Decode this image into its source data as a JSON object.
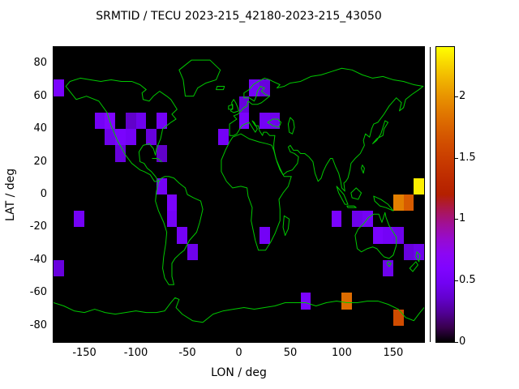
{
  "title": "SRMTID / TECU 2023-215_42180-2023-215_43050",
  "axes": {
    "x_label": "LON / deg",
    "y_label": "LAT / deg",
    "x_ticks": [
      -150,
      -100,
      -50,
      0,
      50,
      100,
      150
    ],
    "y_ticks": [
      80,
      60,
      40,
      20,
      0,
      -20,
      -40,
      -60,
      -80
    ],
    "x_range": [
      -180,
      180
    ],
    "y_range": [
      -90,
      90
    ]
  },
  "colorbar": {
    "tick_values": [
      0,
      0.5,
      1,
      1.5,
      2
    ],
    "min": 0,
    "max": 2.4
  },
  "colors": {
    "page_background": "#ffffff",
    "plot_background": "#000000",
    "coastline_green": "#00c800",
    "border": "#000000",
    "text": "#000000"
  },
  "chart_data": {
    "type": "heatmap",
    "title": "SRMTID / TECU 2023-215_42180-2023-215_43050",
    "xlabel": "LON / deg",
    "ylabel": "LAT / deg",
    "xlim": [
      -180,
      180
    ],
    "ylim": [
      -90,
      90
    ],
    "grid": false,
    "colorbar_range": [
      0,
      2.4
    ],
    "colorbar_ticks": [
      0,
      0.5,
      1,
      1.5,
      2
    ],
    "cell_size_deg": 10,
    "palette": "gnuplot-default black-violet-red-orange-yellow",
    "background_value": 0,
    "cells_format": [
      "lon_west_deg",
      "lat_south_deg",
      "tecu"
    ],
    "cells": [
      [
        -180,
        60,
        0.55
      ],
      [
        -140,
        40,
        0.5
      ],
      [
        -130,
        40,
        0.6
      ],
      [
        -130,
        30,
        0.45
      ],
      [
        -120,
        30,
        0.55
      ],
      [
        -120,
        20,
        0.4
      ],
      [
        -110,
        40,
        0.35
      ],
      [
        -110,
        30,
        0.5
      ],
      [
        -100,
        40,
        0.45
      ],
      [
        -90,
        30,
        0.4
      ],
      [
        -80,
        40,
        0.5
      ],
      [
        -80,
        20,
        0.35
      ],
      [
        -20,
        30,
        0.5
      ],
      [
        0,
        50,
        0.4
      ],
      [
        0,
        40,
        0.55
      ],
      [
        20,
        40,
        0.5
      ],
      [
        30,
        40,
        0.45
      ],
      [
        10,
        60,
        0.5
      ],
      [
        20,
        60,
        0.4
      ],
      [
        -80,
        0,
        0.5
      ],
      [
        -70,
        -10,
        0.55
      ],
      [
        -70,
        -20,
        0.5
      ],
      [
        -60,
        -30,
        0.5
      ],
      [
        -50,
        -40,
        0.45
      ],
      [
        -160,
        -20,
        0.5
      ],
      [
        -180,
        -50,
        0.4
      ],
      [
        20,
        -30,
        0.5
      ],
      [
        90,
        -20,
        0.55
      ],
      [
        110,
        -20,
        0.45
      ],
      [
        120,
        -20,
        0.5
      ],
      [
        130,
        -30,
        0.55
      ],
      [
        140,
        -30,
        0.5
      ],
      [
        150,
        -30,
        0.45
      ],
      [
        160,
        -40,
        0.4
      ],
      [
        170,
        -40,
        0.45
      ],
      [
        140,
        -50,
        0.45
      ],
      [
        60,
        -70,
        0.55
      ],
      [
        100,
        -70,
        1.8
      ],
      [
        150,
        -80,
        1.6
      ],
      [
        150,
        -10,
        1.9
      ],
      [
        160,
        -10,
        1.7
      ],
      [
        170,
        0,
        2.35
      ]
    ]
  }
}
